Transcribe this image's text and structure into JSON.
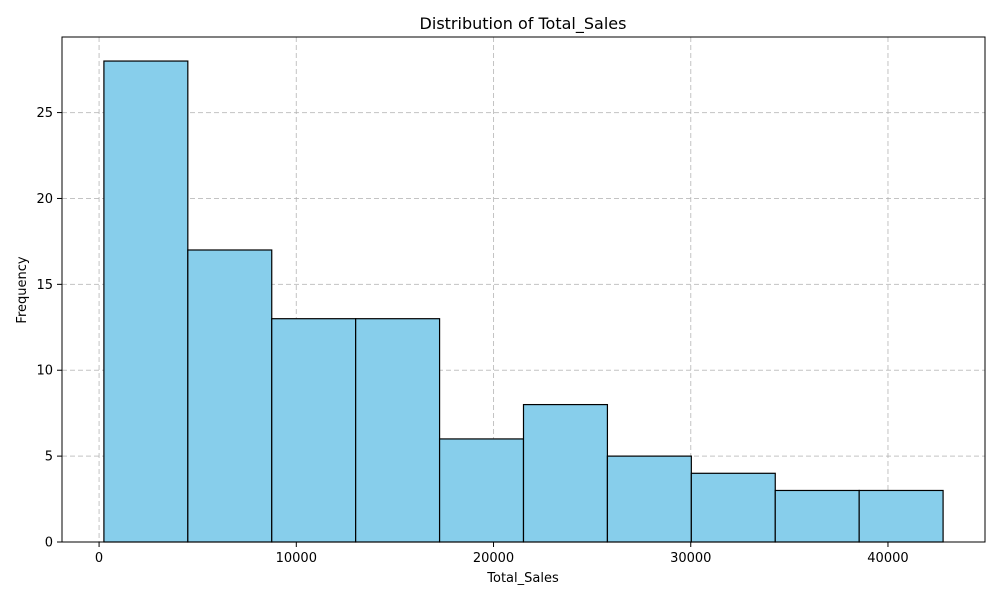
{
  "chart_data": {
    "type": "bar",
    "title": "Distribution of Total_Sales",
    "xlabel": "Total_Sales",
    "ylabel": "Frequency",
    "bin_edges": [
      245,
      4500,
      8755,
      13010,
      17265,
      21520,
      25775,
      30030,
      34285,
      38540,
      42795
    ],
    "values": [
      28,
      17,
      13,
      13,
      6,
      8,
      5,
      4,
      3,
      3
    ],
    "xlim": [
      -1880,
      44920
    ],
    "ylim": [
      0,
      29.4
    ],
    "xticks": [
      0,
      10000,
      20000,
      30000,
      40000
    ],
    "yticks": [
      0,
      5,
      10,
      15,
      20,
      25
    ],
    "grid": true,
    "colors": {
      "bar_fill": "#87ceeb",
      "bar_edge": "#000000"
    }
  }
}
